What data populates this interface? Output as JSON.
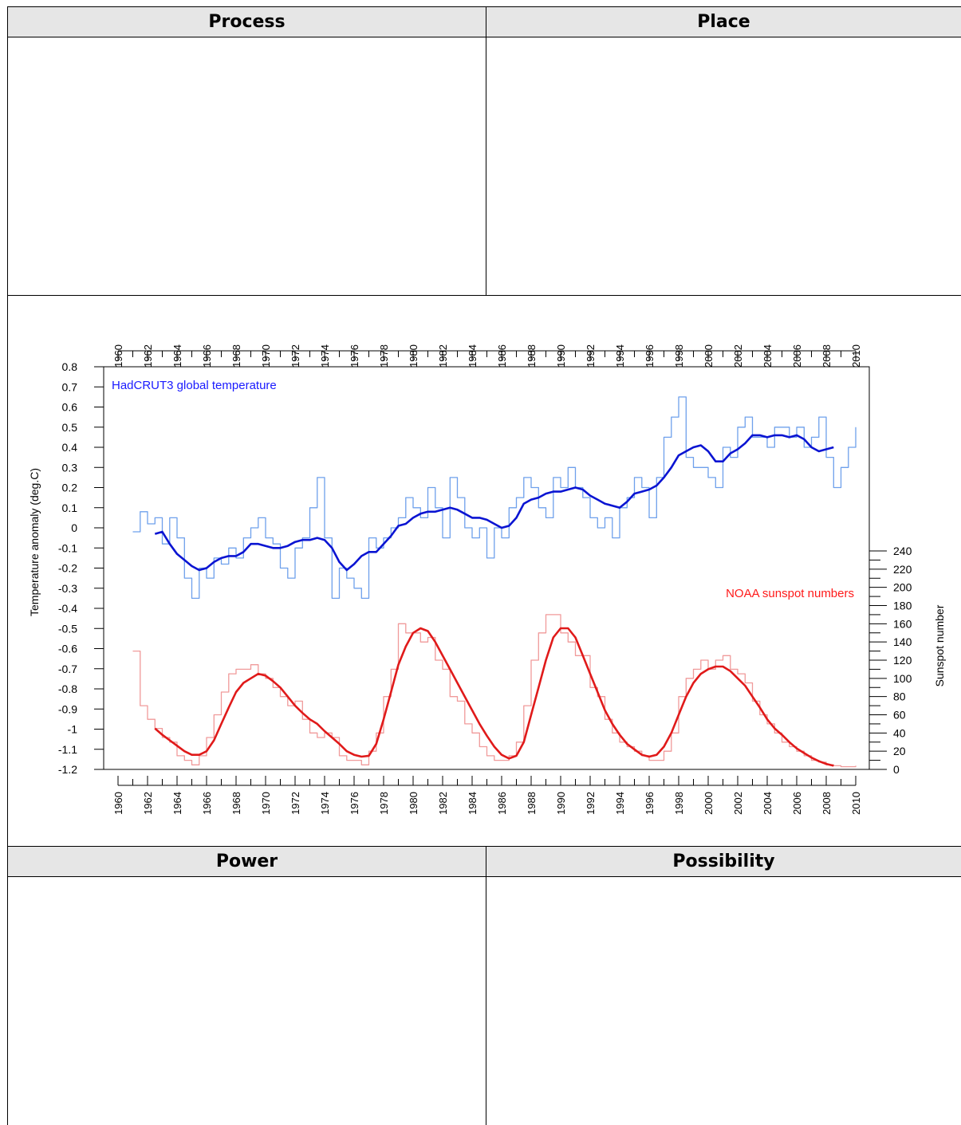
{
  "table": {
    "headers": {
      "process": "Process",
      "place": "Place",
      "power": "Power",
      "possibility": "Possibility"
    }
  },
  "chart_data": {
    "type": "line",
    "title": "",
    "xlabel": "",
    "ylabel_left": "Temperature anomaly (deg.C)",
    "ylabel_right": "Sunspot number",
    "xlim": [
      1960,
      2010
    ],
    "x_ticks": [
      "1960",
      "1962",
      "1964",
      "1966",
      "1968",
      "1970",
      "1972",
      "1974",
      "1976",
      "1978",
      "1980",
      "1982",
      "1984",
      "1986",
      "1988",
      "1990",
      "1992",
      "1994",
      "1996",
      "1998",
      "2000",
      "2002",
      "2004",
      "2006",
      "2008",
      "2010"
    ],
    "ylim_left": [
      -1.2,
      0.8
    ],
    "y_ticks_left": [
      "0.8",
      "0.7",
      "0.6",
      "0.5",
      "0.4",
      "0.3",
      "0.2",
      "0.1",
      "0",
      "-0.1",
      "-0.2",
      "-0.3",
      "-0.4",
      "-0.5",
      "-0.6",
      "-0.7",
      "-0.8",
      "-0.9",
      "-1",
      "-1.1",
      "-1.2"
    ],
    "ylim_right": [
      0,
      240
    ],
    "y_ticks_right": [
      "240",
      "220",
      "200",
      "180",
      "160",
      "140",
      "120",
      "100",
      "80",
      "60",
      "40",
      "20",
      "0"
    ],
    "annotations": {
      "temperature": "HadCRUT3 global temperature",
      "sunspots": "NOAA sunspot numbers"
    },
    "colors": {
      "temp_raw": "#6ea0ec",
      "temp_smooth": "#0a14d2",
      "sun_raw": "#f09a9a",
      "sun_smooth": "#e01a1a"
    },
    "series": [
      {
        "name": "HadCRUT3 global temperature",
        "axis": "left",
        "x": [
          1961.0,
          1961.5,
          1962.0,
          1962.5,
          1963.0,
          1963.5,
          1964.0,
          1964.5,
          1965.0,
          1965.5,
          1966.0,
          1966.5,
          1967.0,
          1967.5,
          1968.0,
          1968.5,
          1969.0,
          1969.5,
          1970.0,
          1970.5,
          1971.0,
          1971.5,
          1972.0,
          1972.5,
          1973.0,
          1973.5,
          1974.0,
          1974.5,
          1975.0,
          1975.5,
          1976.0,
          1976.5,
          1977.0,
          1977.5,
          1978.0,
          1978.5,
          1979.0,
          1979.5,
          1980.0,
          1980.5,
          1981.0,
          1981.5,
          1982.0,
          1982.5,
          1983.0,
          1983.5,
          1984.0,
          1984.5,
          1985.0,
          1985.5,
          1986.0,
          1986.5,
          1987.0,
          1987.5,
          1988.0,
          1988.5,
          1989.0,
          1989.5,
          1990.0,
          1990.5,
          1991.0,
          1991.5,
          1992.0,
          1992.5,
          1993.0,
          1993.5,
          1994.0,
          1994.5,
          1995.0,
          1995.5,
          1996.0,
          1996.5,
          1997.0,
          1997.5,
          1998.0,
          1998.5,
          1999.0,
          1999.5,
          2000.0,
          2000.5,
          2001.0,
          2001.5,
          2002.0,
          2002.5,
          2003.0,
          2003.5,
          2004.0,
          2004.5,
          2005.0,
          2005.5,
          2006.0,
          2006.5,
          2007.0,
          2007.5,
          2008.0,
          2008.5,
          2009.0,
          2009.5,
          2010.0
        ],
        "values": [
          -0.02,
          0.08,
          0.02,
          0.05,
          -0.08,
          0.05,
          -0.05,
          -0.25,
          -0.35,
          -0.2,
          -0.25,
          -0.15,
          -0.18,
          -0.1,
          -0.15,
          -0.05,
          0.0,
          0.05,
          -0.05,
          -0.08,
          -0.2,
          -0.25,
          -0.1,
          -0.05,
          0.1,
          0.25,
          -0.05,
          -0.35,
          -0.2,
          -0.25,
          -0.3,
          -0.35,
          -0.05,
          -0.1,
          -0.05,
          0.0,
          0.05,
          0.15,
          0.1,
          0.05,
          0.2,
          0.1,
          -0.05,
          0.25,
          0.15,
          0.0,
          -0.05,
          0.0,
          -0.15,
          0.0,
          -0.05,
          0.1,
          0.15,
          0.25,
          0.2,
          0.1,
          0.05,
          0.25,
          0.2,
          0.3,
          0.2,
          0.15,
          0.05,
          0.0,
          0.05,
          -0.05,
          0.1,
          0.15,
          0.25,
          0.2,
          0.05,
          0.25,
          0.45,
          0.55,
          0.65,
          0.35,
          0.3,
          0.3,
          0.25,
          0.2,
          0.4,
          0.35,
          0.5,
          0.55,
          0.45,
          0.45,
          0.4,
          0.5,
          0.5,
          0.45,
          0.5,
          0.4,
          0.45,
          0.55,
          0.35,
          0.2,
          0.3,
          0.4,
          0.5
        ]
      },
      {
        "name": "HadCRUT3 global temperature (smoothed)",
        "axis": "left",
        "x": [
          1962.5,
          1963.0,
          1963.5,
          1964.0,
          1964.5,
          1965.0,
          1965.5,
          1966.0,
          1966.5,
          1967.0,
          1967.5,
          1968.0,
          1968.5,
          1969.0,
          1969.5,
          1970.0,
          1970.5,
          1971.0,
          1971.5,
          1972.0,
          1972.5,
          1973.0,
          1973.5,
          1974.0,
          1974.5,
          1975.0,
          1975.5,
          1976.0,
          1976.5,
          1977.0,
          1977.5,
          1978.0,
          1978.5,
          1979.0,
          1979.5,
          1980.0,
          1980.5,
          1981.0,
          1981.5,
          1982.0,
          1982.5,
          1983.0,
          1983.5,
          1984.0,
          1984.5,
          1985.0,
          1985.5,
          1986.0,
          1986.5,
          1987.0,
          1987.5,
          1988.0,
          1988.5,
          1989.0,
          1989.5,
          1990.0,
          1990.5,
          1991.0,
          1991.5,
          1992.0,
          1992.5,
          1993.0,
          1993.5,
          1994.0,
          1994.5,
          1995.0,
          1995.5,
          1996.0,
          1996.5,
          1997.0,
          1997.5,
          1998.0,
          1998.5,
          1999.0,
          1999.5,
          2000.0,
          2000.5,
          2001.0,
          2001.5,
          2002.0,
          2002.5,
          2003.0,
          2003.5,
          2004.0,
          2004.5,
          2005.0,
          2005.5,
          2006.0,
          2006.5,
          2007.0,
          2007.5,
          2008.0,
          2008.5
        ],
        "values": [
          -0.03,
          -0.02,
          -0.08,
          -0.13,
          -0.16,
          -0.19,
          -0.21,
          -0.2,
          -0.17,
          -0.15,
          -0.14,
          -0.14,
          -0.12,
          -0.08,
          -0.08,
          -0.09,
          -0.1,
          -0.1,
          -0.09,
          -0.07,
          -0.06,
          -0.06,
          -0.05,
          -0.06,
          -0.1,
          -0.17,
          -0.21,
          -0.18,
          -0.14,
          -0.12,
          -0.12,
          -0.08,
          -0.04,
          0.01,
          0.02,
          0.05,
          0.07,
          0.08,
          0.08,
          0.09,
          0.1,
          0.09,
          0.07,
          0.05,
          0.05,
          0.04,
          0.02,
          0.0,
          0.01,
          0.05,
          0.12,
          0.14,
          0.15,
          0.17,
          0.18,
          0.18,
          0.19,
          0.2,
          0.19,
          0.16,
          0.14,
          0.12,
          0.11,
          0.1,
          0.13,
          0.17,
          0.18,
          0.19,
          0.21,
          0.25,
          0.3,
          0.36,
          0.38,
          0.4,
          0.41,
          0.38,
          0.33,
          0.33,
          0.37,
          0.39,
          0.42,
          0.46,
          0.46,
          0.45,
          0.46,
          0.46,
          0.45,
          0.46,
          0.44,
          0.4,
          0.38,
          0.39,
          0.4
        ]
      },
      {
        "name": "NOAA sunspot numbers",
        "axis": "right",
        "x": [
          1961.0,
          1961.5,
          1962.0,
          1962.5,
          1963.0,
          1963.5,
          1964.0,
          1964.5,
          1965.0,
          1965.5,
          1966.0,
          1966.5,
          1967.0,
          1967.5,
          1968.0,
          1968.5,
          1969.0,
          1969.5,
          1970.0,
          1970.5,
          1971.0,
          1971.5,
          1972.0,
          1972.5,
          1973.0,
          1973.5,
          1974.0,
          1974.5,
          1975.0,
          1975.5,
          1976.0,
          1976.5,
          1977.0,
          1977.5,
          1978.0,
          1978.5,
          1979.0,
          1979.5,
          1980.0,
          1980.5,
          1981.0,
          1981.5,
          1982.0,
          1982.5,
          1983.0,
          1983.5,
          1984.0,
          1984.5,
          1985.0,
          1985.5,
          1986.0,
          1986.5,
          1987.0,
          1987.5,
          1988.0,
          1988.5,
          1989.0,
          1989.5,
          1990.0,
          1990.5,
          1991.0,
          1991.5,
          1992.0,
          1992.5,
          1993.0,
          1993.5,
          1994.0,
          1994.5,
          1995.0,
          1995.5,
          1996.0,
          1996.5,
          1997.0,
          1997.5,
          1998.0,
          1998.5,
          1999.0,
          1999.5,
          2000.0,
          2000.5,
          2001.0,
          2001.5,
          2002.0,
          2002.5,
          2003.0,
          2003.5,
          2004.0,
          2004.5,
          2005.0,
          2005.5,
          2006.0,
          2006.5,
          2007.0,
          2007.5,
          2008.0,
          2008.5,
          2009.0,
          2009.5,
          2010.0
        ],
        "values": [
          130,
          70,
          55,
          45,
          35,
          30,
          15,
          10,
          5,
          15,
          35,
          60,
          85,
          105,
          110,
          110,
          115,
          105,
          100,
          90,
          80,
          70,
          75,
          55,
          40,
          35,
          40,
          35,
          15,
          10,
          10,
          5,
          20,
          40,
          80,
          110,
          160,
          150,
          150,
          140,
          145,
          120,
          110,
          80,
          75,
          50,
          40,
          25,
          15,
          10,
          10,
          15,
          30,
          70,
          120,
          150,
          170,
          170,
          150,
          140,
          125,
          125,
          90,
          80,
          55,
          40,
          30,
          25,
          20,
          15,
          10,
          10,
          20,
          40,
          80,
          100,
          110,
          120,
          110,
          120,
          125,
          110,
          105,
          95,
          75,
          60,
          50,
          40,
          30,
          25,
          20,
          15,
          10,
          8,
          5,
          4,
          3,
          3,
          4
        ]
      },
      {
        "name": "NOAA sunspot numbers (smoothed)",
        "axis": "right",
        "x": [
          1962.5,
          1963.0,
          1963.5,
          1964.0,
          1964.5,
          1965.0,
          1965.5,
          1966.0,
          1966.5,
          1967.0,
          1967.5,
          1968.0,
          1968.5,
          1969.0,
          1969.5,
          1970.0,
          1970.5,
          1971.0,
          1971.5,
          1972.0,
          1972.5,
          1973.0,
          1973.5,
          1974.0,
          1974.5,
          1975.0,
          1975.5,
          1976.0,
          1976.5,
          1977.0,
          1977.5,
          1978.0,
          1978.5,
          1979.0,
          1979.5,
          1980.0,
          1980.5,
          1981.0,
          1981.5,
          1982.0,
          1982.5,
          1983.0,
          1983.5,
          1984.0,
          1984.5,
          1985.0,
          1985.5,
          1986.0,
          1986.5,
          1987.0,
          1987.5,
          1988.0,
          1988.5,
          1989.0,
          1989.5,
          1990.0,
          1990.5,
          1991.0,
          1991.5,
          1992.0,
          1992.5,
          1993.0,
          1993.5,
          1994.0,
          1994.5,
          1995.0,
          1995.5,
          1996.0,
          1996.5,
          1997.0,
          1997.5,
          1998.0,
          1998.5,
          1999.0,
          1999.5,
          2000.0,
          2000.5,
          2001.0,
          2001.5,
          2002.0,
          2002.5,
          2003.0,
          2003.5,
          2004.0,
          2004.5,
          2005.0,
          2005.5,
          2006.0,
          2006.5,
          2007.0,
          2007.5,
          2008.0,
          2008.5
        ],
        "values": [
          45,
          38,
          32,
          26,
          20,
          16,
          16,
          20,
          32,
          50,
          68,
          85,
          95,
          100,
          105,
          103,
          97,
          90,
          80,
          70,
          62,
          55,
          50,
          42,
          35,
          28,
          20,
          16,
          14,
          15,
          28,
          55,
          85,
          115,
          135,
          150,
          155,
          152,
          140,
          125,
          110,
          95,
          80,
          65,
          50,
          37,
          25,
          16,
          12,
          15,
          30,
          60,
          90,
          120,
          145,
          155,
          155,
          145,
          125,
          105,
          85,
          65,
          50,
          38,
          28,
          22,
          16,
          14,
          16,
          25,
          40,
          60,
          80,
          95,
          105,
          110,
          113,
          113,
          108,
          100,
          92,
          80,
          68,
          55,
          45,
          38,
          30,
          23,
          18,
          13,
          9,
          6,
          4
        ]
      }
    ]
  }
}
